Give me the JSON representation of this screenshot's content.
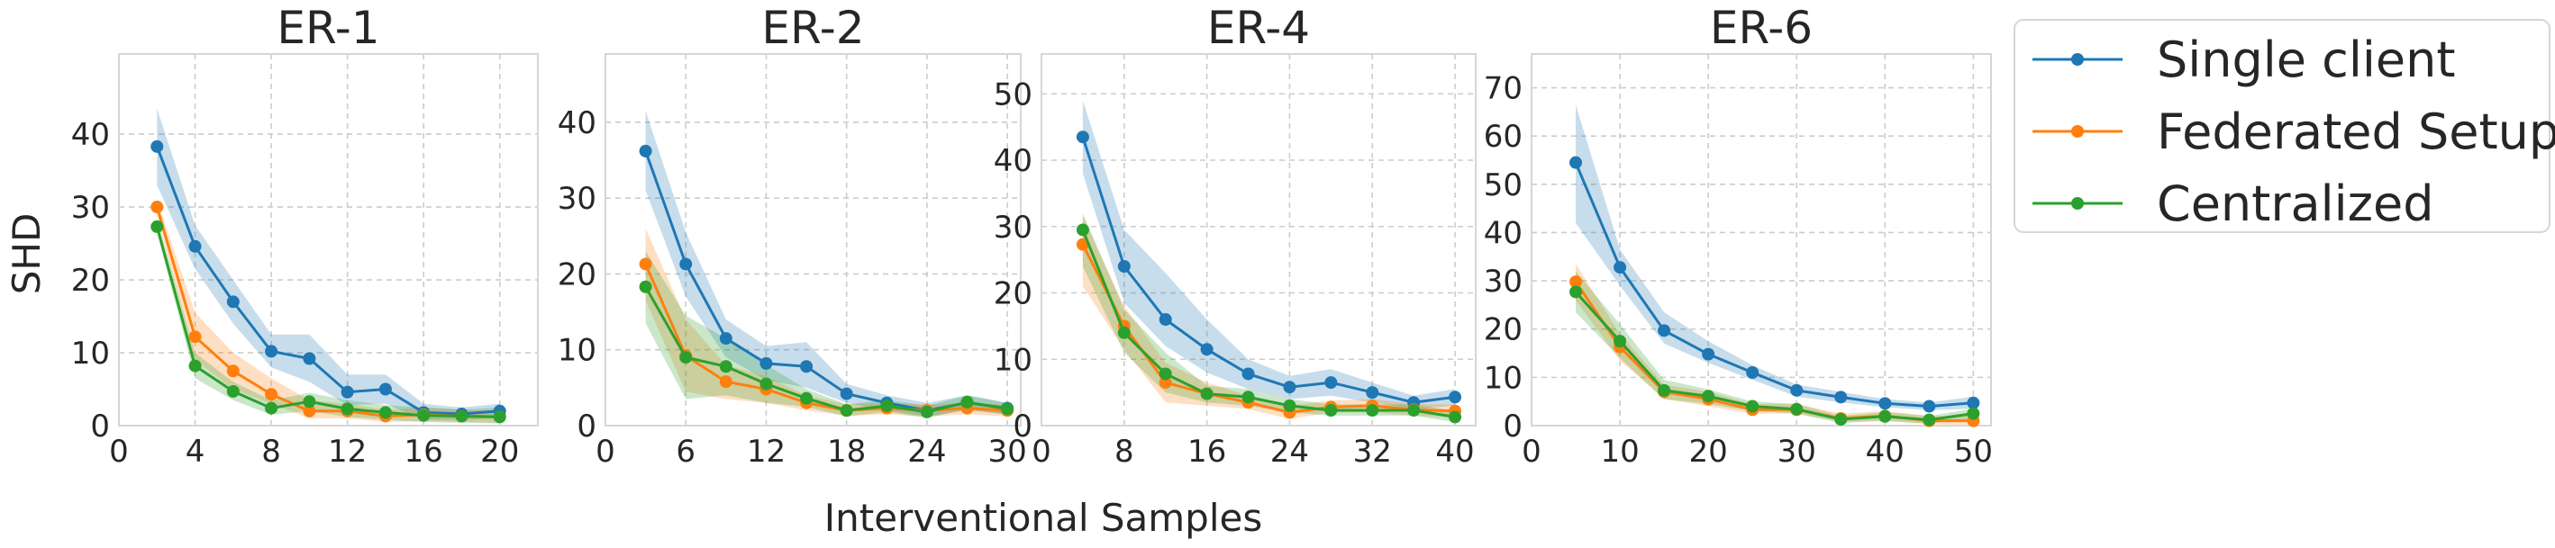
{
  "chart_data": {
    "type": "line",
    "ylabel": "SHD",
    "xlabel": "Interventional Samples",
    "legend": {
      "placement": "right",
      "entries": [
        "Single client",
        "Federated Setup",
        "Centralized"
      ]
    },
    "colors": {
      "Single client": "#1f77b4",
      "Federated Setup": "#ff7f0e",
      "Centralized": "#2ca02c"
    },
    "grid": true,
    "panels": [
      {
        "title": "ER-1",
        "xlim": [
          0,
          22
        ],
        "ylim": [
          0,
          51
        ],
        "xticks": [
          0,
          4,
          8,
          12,
          16,
          20
        ],
        "yticks": [
          0,
          10,
          20,
          30,
          40
        ],
        "x": [
          2,
          4,
          6,
          8,
          10,
          12,
          14,
          16,
          18,
          20
        ],
        "series": [
          {
            "name": "Single client",
            "values": [
              38.3,
              24.6,
              17.0,
              10.2,
              9.2,
              4.6,
              5.0,
              1.8,
              1.6,
              2.0
            ],
            "lower": [
              33.0,
              21.5,
              14.0,
              8.0,
              6.0,
              2.8,
              3.0,
              0.8,
              0.8,
              1.0
            ],
            "upper": [
              43.5,
              27.5,
              20.0,
              12.5,
              12.5,
              7.0,
              7.0,
              3.0,
              2.5,
              3.0
            ]
          },
          {
            "name": "Federated Setup",
            "values": [
              30.0,
              12.2,
              7.5,
              4.3,
              2.0,
              2.0,
              1.3,
              1.5,
              1.3,
              1.2
            ],
            "lower": [
              29.0,
              9.0,
              5.0,
              3.0,
              1.0,
              1.0,
              0.5,
              0.6,
              0.5,
              0.4
            ],
            "upper": [
              31.0,
              15.5,
              10.0,
              6.5,
              3.5,
              3.0,
              2.2,
              2.5,
              2.2,
              2.0
            ]
          },
          {
            "name": "Centralized",
            "values": [
              27.3,
              8.2,
              4.7,
              2.4,
              3.3,
              2.3,
              1.8,
              1.4,
              1.3,
              1.2
            ],
            "lower": [
              26.5,
              6.5,
              3.5,
              1.5,
              2.0,
              1.2,
              0.8,
              0.5,
              0.4,
              0.3
            ],
            "upper": [
              28.5,
              10.0,
              6.0,
              3.5,
              4.5,
              3.5,
              2.8,
              2.5,
              2.2,
              2.5
            ]
          }
        ]
      },
      {
        "title": "ER-2",
        "xlim": [
          0,
          31
        ],
        "ylim": [
          0,
          49
        ],
        "xticks": [
          0,
          6,
          12,
          18,
          24,
          30
        ],
        "yticks": [
          0,
          10,
          20,
          30,
          40
        ],
        "x": [
          3,
          6,
          9,
          12,
          15,
          18,
          21,
          24,
          27,
          30
        ],
        "series": [
          {
            "name": "Single client",
            "values": [
              36.2,
              21.3,
              11.5,
              8.2,
              7.8,
              4.2,
              3.0,
              2.0,
              3.0,
              2.3
            ],
            "lower": [
              31.0,
              17.0,
              9.0,
              6.0,
              5.0,
              3.0,
              2.0,
              1.2,
              2.0,
              1.5
            ],
            "upper": [
              41.5,
              25.5,
              14.0,
              10.5,
              11.0,
              5.5,
              4.0,
              3.0,
              4.0,
              3.0
            ]
          },
          {
            "name": "Federated Setup",
            "values": [
              21.3,
              9.2,
              5.8,
              4.8,
              3.0,
              2.0,
              2.3,
              2.0,
              2.3,
              2.0
            ],
            "lower": [
              16.5,
              4.5,
              3.5,
              3.0,
              2.0,
              1.3,
              1.5,
              1.2,
              1.5,
              1.2
            ],
            "upper": [
              26.0,
              14.0,
              8.0,
              6.5,
              4.0,
              2.8,
              3.0,
              2.8,
              3.0,
              2.8
            ]
          },
          {
            "name": "Centralized",
            "values": [
              18.3,
              9.0,
              7.8,
              5.5,
              3.6,
              2.0,
              2.6,
              1.8,
              3.1,
              2.2
            ],
            "lower": [
              13.5,
              3.5,
              4.0,
              3.0,
              2.5,
              1.2,
              1.8,
              1.0,
              2.2,
              1.4
            ],
            "upper": [
              23.0,
              14.5,
              11.5,
              8.0,
              4.8,
              2.8,
              3.4,
              2.6,
              4.0,
              3.0
            ]
          }
        ]
      },
      {
        "title": "ER-4",
        "xlim": [
          0,
          42
        ],
        "ylim": [
          0,
          56
        ],
        "xticks": [
          0,
          8,
          16,
          24,
          32,
          40
        ],
        "yticks": [
          0,
          10,
          20,
          30,
          40,
          50
        ],
        "x": [
          4,
          8,
          12,
          16,
          20,
          24,
          28,
          32,
          36,
          40
        ],
        "series": [
          {
            "name": "Single client",
            "values": [
              43.5,
              24.0,
              16.0,
              11.5,
              7.8,
              5.8,
              6.5,
              5.0,
              3.5,
              4.3
            ],
            "lower": [
              38.0,
              18.5,
              12.0,
              8.0,
              5.5,
              4.0,
              4.5,
              3.5,
              2.5,
              3.0
            ],
            "upper": [
              49.0,
              29.5,
              23.0,
              16.0,
              10.0,
              7.5,
              8.5,
              6.5,
              4.5,
              5.5
            ]
          },
          {
            "name": "Federated Setup",
            "values": [
              27.3,
              15.0,
              6.5,
              4.8,
              3.5,
              2.0,
              2.8,
              3.0,
              2.4,
              2.2
            ],
            "lower": [
              21.0,
              11.5,
              3.5,
              3.0,
              2.5,
              1.0,
              2.0,
              2.0,
              1.5,
              1.2
            ],
            "upper": [
              31.5,
              18.0,
              9.5,
              6.5,
              4.5,
              3.0,
              3.8,
              4.0,
              3.3,
              3.2
            ]
          },
          {
            "name": "Centralized",
            "values": [
              29.5,
              14.0,
              7.8,
              4.8,
              4.3,
              3.0,
              2.3,
              2.3,
              2.3,
              1.3
            ],
            "lower": [
              24.0,
              11.0,
              5.0,
              3.5,
              3.0,
              2.0,
              1.5,
              1.5,
              1.5,
              0.5
            ],
            "upper": [
              32.0,
              17.5,
              11.0,
              6.0,
              5.5,
              4.0,
              3.2,
              3.2,
              3.2,
              2.2
            ]
          }
        ]
      },
      {
        "title": "ER-6",
        "xlim": [
          0,
          52
        ],
        "ylim": [
          0,
          77
        ],
        "xticks": [
          0,
          10,
          20,
          30,
          40,
          50
        ],
        "yticks": [
          0,
          10,
          20,
          30,
          40,
          50,
          60,
          70
        ],
        "x": [
          5,
          10,
          15,
          20,
          25,
          30,
          35,
          40,
          45,
          50
        ],
        "series": [
          {
            "name": "Single client",
            "values": [
              54.5,
              32.8,
              19.7,
              14.8,
              11.0,
              7.3,
              5.9,
              4.6,
              4.0,
              4.7
            ],
            "lower": [
              42.0,
              29.0,
              17.0,
              13.0,
              9.5,
              6.0,
              4.8,
              3.8,
              3.2,
              3.5
            ],
            "upper": [
              66.5,
              36.5,
              23.5,
              17.5,
              12.5,
              8.5,
              7.0,
              5.5,
              4.8,
              6.0
            ]
          },
          {
            "name": "Federated Setup",
            "values": [
              29.8,
              16.3,
              7.0,
              5.5,
              3.3,
              3.3,
              1.5,
              2.0,
              1.0,
              1.0
            ],
            "lower": [
              26.0,
              13.5,
              5.5,
              4.0,
              2.5,
              2.5,
              0.8,
              1.0,
              0.3,
              0.2
            ],
            "upper": [
              33.5,
              19.0,
              8.5,
              7.0,
              4.5,
              4.5,
              2.5,
              3.0,
              2.0,
              2.0
            ]
          },
          {
            "name": "Centralized",
            "values": [
              27.7,
              17.5,
              7.3,
              6.1,
              4.0,
              3.4,
              1.3,
              1.9,
              1.2,
              2.5
            ],
            "lower": [
              23.5,
              14.0,
              5.5,
              4.5,
              3.0,
              2.5,
              0.5,
              1.0,
              0.4,
              1.5
            ],
            "upper": [
              32.0,
              21.0,
              9.5,
              7.5,
              5.0,
              4.5,
              2.0,
              2.8,
              2.0,
              3.5
            ]
          }
        ]
      }
    ]
  }
}
